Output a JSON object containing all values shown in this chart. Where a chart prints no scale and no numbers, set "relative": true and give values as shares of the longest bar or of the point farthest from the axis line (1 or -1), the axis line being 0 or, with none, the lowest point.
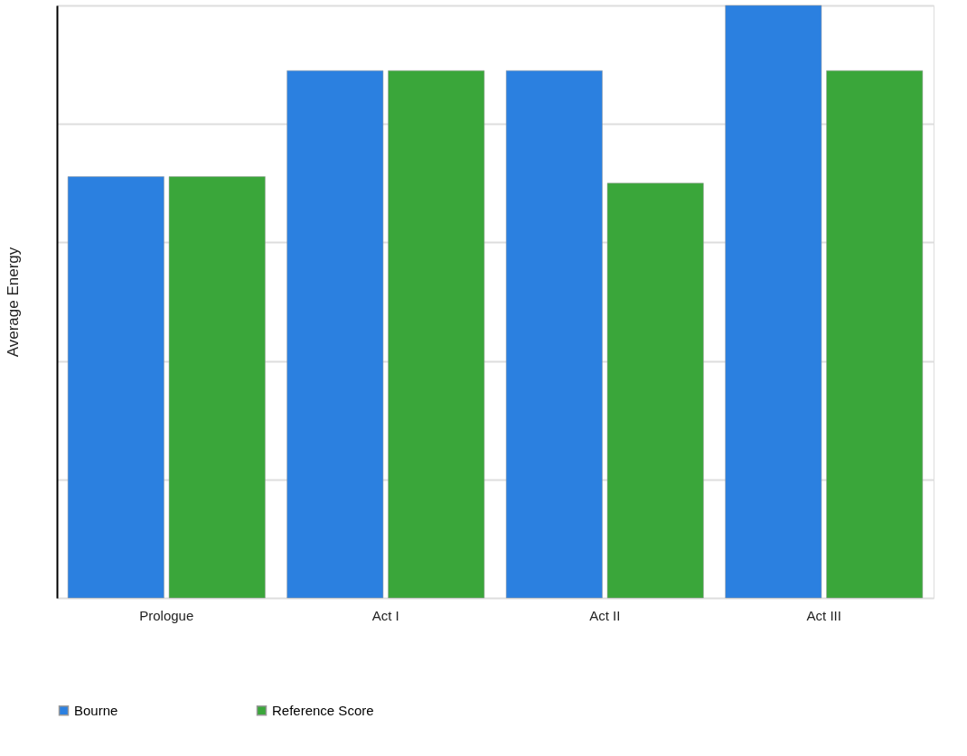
{
  "chart_data": {
    "type": "bar",
    "ylabel": "Average Energy",
    "relative": true,
    "grid": "y",
    "legend": "bottom",
    "categories": [
      "Prologue",
      "Act I",
      "Act II",
      "Act III"
    ],
    "series": [
      {
        "name": "Bourne",
        "color": "#2b80e0",
        "values": [
          0.711,
          0.89,
          0.89,
          1
        ]
      },
      {
        "name": "Reference Score",
        "color": "#3aa63a",
        "values": [
          0.711,
          0.89,
          0.7,
          0.89
        ]
      }
    ]
  }
}
